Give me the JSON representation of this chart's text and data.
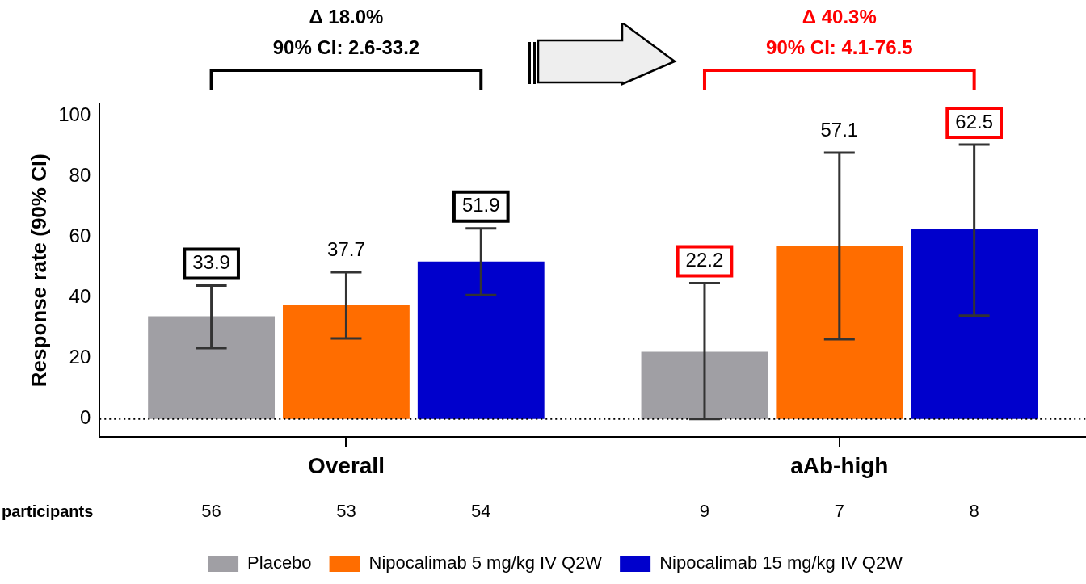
{
  "chart_data": {
    "type": "bar",
    "ylabel": "Response rate (90% CI)",
    "categories": [
      "Overall",
      "aAb-high"
    ],
    "series": [
      {
        "name": "Placebo",
        "color": "#a09fa4",
        "values": [
          33.9,
          22.2
        ],
        "value_labels": [
          "33.9",
          null
        ],
        "errors": [
          [
            23.4,
            44.0
          ],
          [
            0,
            44.8
          ]
        ]
      },
      {
        "name": "Nipocalimab 5 mg/kg IV Q2W",
        "color": "#ff6d00",
        "values": [
          37.7,
          57.1
        ],
        "value_labels": [
          "37.7",
          null
        ],
        "errors": [
          [
            26.6,
            48.4
          ],
          [
            26.3,
            87.8
          ]
        ]
      },
      {
        "name": "Nipocalimab 15 mg/kg IV Q2W",
        "color": "#0000cc",
        "values": [
          51.9,
          62.5
        ],
        "value_labels": [
          "51.9",
          null
        ],
        "errors": [
          [
            40.9,
            62.8
          ],
          [
            34.1,
            90.4
          ]
        ]
      }
    ],
    "ylim": [
      -6,
      104
    ],
    "yticks": [
      0,
      20,
      40,
      60,
      80,
      100
    ],
    "grid": false,
    "legend": "bottom",
    "ref_lines": [
      {
        "axis": "y",
        "value": 0,
        "line_style": "dotted",
        "color": "#000000"
      }
    ],
    "annotations": [
      "Δ 18.0%\n90% CI: 2.6-33.2",
      "Δ 40.3%\n90% CI: 4.1-76.5",
      "participants",
      "56",
      "53",
      "54",
      "9",
      "7",
      "8",
      "22.2",
      "57.1",
      "62.5"
    ]
  }
}
